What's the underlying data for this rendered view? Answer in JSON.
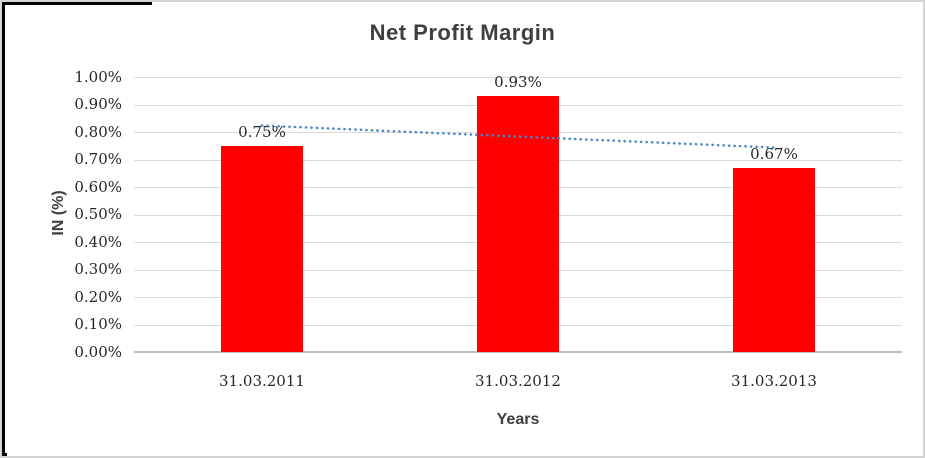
{
  "chart_data": {
    "type": "bar",
    "title": "Net Profit Margin",
    "categories": [
      "31.03.2011",
      "31.03.2012",
      "31.03.2013"
    ],
    "values": [
      0.75,
      0.93,
      0.67
    ],
    "data_labels": [
      "0.75%",
      "0.93%",
      "0.67%"
    ],
    "xlabel": "Years",
    "ylabel": "IN (%)",
    "ylim": [
      0,
      1
    ],
    "ytick_labels": [
      "0.00%",
      "0.10%",
      "0.20%",
      "0.30%",
      "0.40%",
      "0.50%",
      "0.60%",
      "0.70%",
      "0.80%",
      "0.90%",
      "1.00%"
    ],
    "grid": true,
    "legend": "none",
    "bar_color": "#FF0000",
    "trendline": {
      "type": "linear",
      "style": "dotted",
      "color": "#4C84C4",
      "fitted_values": [
        0.8233,
        0.7833,
        0.7433
      ]
    },
    "colors": {
      "title_text": "#3F3F3F",
      "axis_title_text": "#3F3F3F",
      "tick_text": "#262626",
      "gridline": "#D9D9D9",
      "axis_line": "#BFBFBF"
    }
  }
}
